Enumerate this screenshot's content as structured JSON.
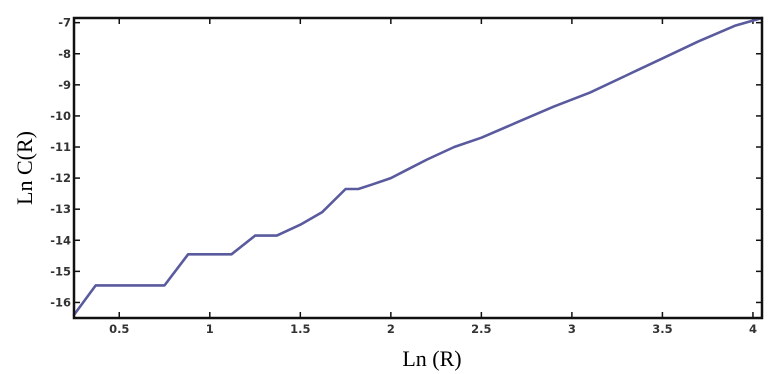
{
  "chart_data": {
    "type": "line",
    "title": "",
    "xlabel": "Ln (R)",
    "ylabel": "Ln C(R)",
    "xlim": [
      0.25,
      4.05
    ],
    "ylim": [
      -16.5,
      -6.85
    ],
    "x_ticks": [
      0.5,
      1,
      1.5,
      2,
      2.5,
      3,
      3.5,
      4
    ],
    "x_tick_labels": [
      "0.5",
      "1",
      "1.5",
      "2",
      "2.5",
      "3",
      "3.5",
      "4"
    ],
    "y_ticks": [
      -16,
      -15,
      -14,
      -13,
      -12,
      -11,
      -10,
      -9,
      -8,
      -7
    ],
    "y_tick_labels": [
      "-16",
      "-15",
      "-14",
      "-13",
      "-12",
      "-11",
      "-10",
      "-9",
      "-8",
      "-7"
    ],
    "grid": false,
    "legend": "none",
    "series_color": "#5a5a9e",
    "series": [
      {
        "x": [
          0.25,
          0.37,
          0.75,
          0.88,
          1.12,
          1.25,
          1.37,
          1.5,
          1.62,
          1.75,
          1.82,
          1.9,
          2.0,
          2.1,
          2.2,
          2.35,
          2.5,
          2.7,
          2.9,
          3.1,
          3.3,
          3.5,
          3.7,
          3.9,
          4.05
        ],
        "y": [
          -16.4,
          -15.45,
          -15.45,
          -14.45,
          -14.45,
          -13.85,
          -13.85,
          -13.5,
          -13.1,
          -12.35,
          -12.35,
          -12.2,
          -12.0,
          -11.7,
          -11.4,
          -11.0,
          -10.7,
          -10.2,
          -9.7,
          -9.25,
          -8.7,
          -8.15,
          -7.6,
          -7.1,
          -6.85
        ]
      }
    ]
  }
}
